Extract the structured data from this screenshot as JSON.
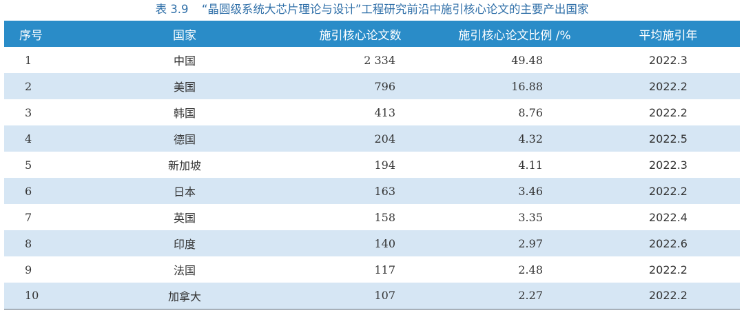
{
  "caption": {
    "number": "表 3.9",
    "title": "“晶圆级系统大芯片理论与设计”工程研究前沿中施引核心论文的主要产出国家"
  },
  "table": {
    "headers": [
      "序号",
      "国家",
      "施引核心论文数",
      "施引核心论文比例 /%",
      "平均施引年"
    ],
    "rows": [
      [
        "1",
        "中国",
        "2 334",
        "49.48",
        "2022.3"
      ],
      [
        "2",
        "美国",
        "796",
        "16.88",
        "2022.2"
      ],
      [
        "3",
        "韩国",
        "413",
        "8.76",
        "2022.2"
      ],
      [
        "4",
        "德国",
        "204",
        "4.32",
        "2022.5"
      ],
      [
        "5",
        "新加坡",
        "194",
        "4.11",
        "2022.3"
      ],
      [
        "6",
        "日本",
        "163",
        "3.46",
        "2022.2"
      ],
      [
        "7",
        "英国",
        "158",
        "3.35",
        "2022.4"
      ],
      [
        "8",
        "印度",
        "140",
        "2.97",
        "2022.6"
      ],
      [
        "9",
        "法国",
        "117",
        "2.48",
        "2022.2"
      ],
      [
        "10",
        "加拿大",
        "107",
        "2.27",
        "2022.2"
      ]
    ]
  },
  "colors": {
    "header_bg": "#2a8cc8",
    "stripe_bg": "#d6e6f4",
    "caption_text": "#2f6fa8"
  }
}
